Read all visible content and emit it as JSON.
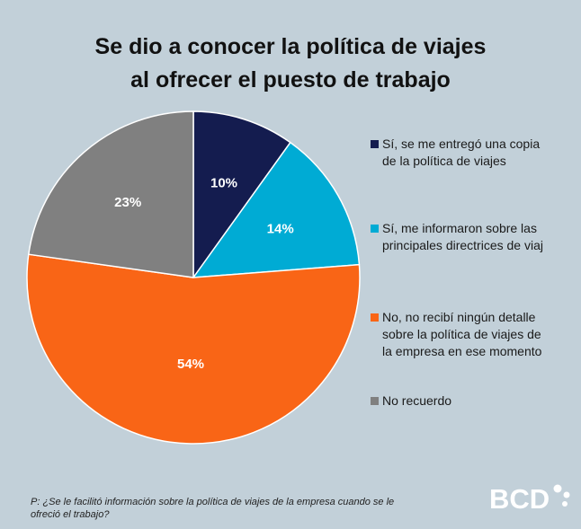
{
  "chart_data": {
    "type": "pie",
    "title_lines": [
      "Se dio a conocer la política de viajes",
      "al ofrecer el puesto de trabajo"
    ],
    "slices": [
      {
        "label": "Sí, se me entregó una copia de la política de viajes",
        "value": 10,
        "display": "10%",
        "color": "#141c4f"
      },
      {
        "label": "Sí, me informaron sobre las principales directrices de viaj",
        "value": 14,
        "display": "14%",
        "color": "#00abd4"
      },
      {
        "label": "No, no recibí ningún detalle sobre la política de viajes de la empresa en ese momento",
        "value": 54,
        "display": "54%",
        "color": "#f96516"
      },
      {
        "label": "No recuerdo",
        "value": 23,
        "display": "23%",
        "color": "#808080"
      }
    ],
    "legend_position": "right"
  },
  "legend_lines": [
    [
      "Sí, se me entregó una copia",
      "de la política de viajes"
    ],
    [
      "Sí, me informaron sobre las",
      "principales directrices de viaj"
    ],
    [
      "No, no recibí ningún detalle",
      "sobre la política de viajes de",
      "la empresa en ese momento"
    ],
    [
      "No recuerdo"
    ]
  ],
  "footer": {
    "question": "P: ¿Se le facilitó información sobre la política de viajes de la empresa cuando se le ofreció el trabajo?",
    "logo_text": "BCD"
  }
}
